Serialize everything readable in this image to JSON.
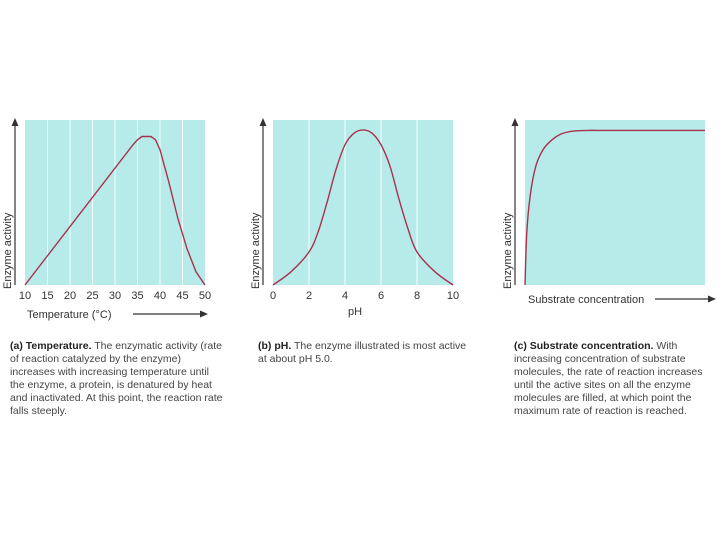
{
  "colors": {
    "plot_bg": "#b6ebea",
    "curve": "#a8324d",
    "grid": "#ffffff"
  },
  "chart_data": [
    {
      "type": "line",
      "id": "temperature",
      "xlabel": "Temperature (°C)",
      "ylabel": "Enzyme activity",
      "xlim": [
        10,
        50
      ],
      "ylim": [
        0,
        1
      ],
      "x_ticks": [
        10,
        15,
        20,
        25,
        30,
        35,
        40,
        45,
        50
      ],
      "grid": true,
      "series": [
        {
          "x": [
            10,
            34,
            35,
            36,
            37,
            38,
            39,
            40,
            42,
            44,
            46,
            48,
            50
          ],
          "values": [
            0.0,
            0.85,
            0.88,
            0.9,
            0.9,
            0.9,
            0.88,
            0.82,
            0.62,
            0.4,
            0.22,
            0.08,
            0.0
          ]
        }
      ]
    },
    {
      "type": "line",
      "id": "ph",
      "xlabel": "pH",
      "ylabel": "Enzyme activity",
      "xlim": [
        0,
        10
      ],
      "ylim": [
        0,
        1
      ],
      "x_ticks": [
        0,
        2,
        4,
        6,
        8,
        10
      ],
      "grid": true,
      "series": [
        {
          "x": [
            0,
            1,
            2,
            2.5,
            3,
            3.5,
            4,
            4.5,
            5,
            5.5,
            6,
            6.5,
            7,
            7.5,
            8,
            9,
            10
          ],
          "values": [
            0.0,
            0.08,
            0.2,
            0.32,
            0.5,
            0.7,
            0.85,
            0.92,
            0.94,
            0.92,
            0.85,
            0.72,
            0.52,
            0.34,
            0.2,
            0.08,
            0.0
          ]
        }
      ]
    },
    {
      "type": "line",
      "id": "substrate",
      "xlabel": "Substrate concentration",
      "ylabel": "Enzyme activity",
      "xlim": [
        0,
        1
      ],
      "ylim": [
        0,
        1
      ],
      "x_ticks": [],
      "grid": false,
      "series": [
        {
          "x": [
            0,
            0.01,
            0.03,
            0.06,
            0.1,
            0.15,
            0.2,
            0.25,
            0.3,
            0.35,
            0.4,
            0.5,
            0.6,
            0.8,
            1.0
          ],
          "values": [
            0.0,
            0.32,
            0.55,
            0.72,
            0.82,
            0.88,
            0.915,
            0.93,
            0.935,
            0.937,
            0.937,
            0.937,
            0.937,
            0.937,
            0.937
          ]
        }
      ]
    }
  ],
  "captions": [
    {
      "title": "(a) Temperature.",
      "body": " The enzymatic activity (rate of reaction catalyzed by the enzyme) increases with increasing temperature until the enzyme, a protein, is denatured by heat and inactivated. At this point, the reaction rate falls steeply."
    },
    {
      "title": "(b) pH.",
      "body": " The enzyme illustrated is most active at about pH 5.0."
    },
    {
      "title": "(c) Substrate concentration.",
      "body": " With increasing concentration of substrate molecules, the rate of reaction increases until the active sites on all the enzyme molecules are filled, at which point the maximum rate of reaction is reached."
    }
  ]
}
